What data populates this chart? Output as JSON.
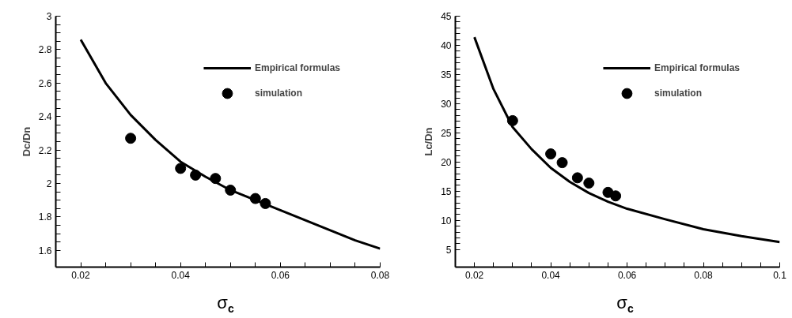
{
  "chart_data": [
    {
      "type": "line",
      "xlabel": "σ$_{c}$",
      "ylabel": "Dc/Dn",
      "xlim": [
        0.015,
        0.08
      ],
      "ylim": [
        1.5,
        3
      ],
      "xticks": [
        0.02,
        {
          "value": 0.025,
          "label": null
        },
        {
          "value": 0.03,
          "label": null
        },
        {
          "value": 0.035,
          "label": null
        },
        0.04,
        {
          "value": 0.045,
          "label": null
        },
        {
          "value": 0.05,
          "label": null
        },
        {
          "value": 0.055,
          "label": null
        },
        0.06,
        {
          "value": 0.065,
          "label": null
        },
        {
          "value": 0.07,
          "label": null
        },
        {
          "value": 0.075,
          "label": null
        },
        0.08
      ],
      "yticks": [
        1.6,
        {
          "value": 1.65,
          "label": null
        },
        {
          "value": 1.7,
          "label": null
        },
        {
          "value": 1.75,
          "label": null
        },
        1.8,
        {
          "value": 1.85,
          "label": null
        },
        {
          "value": 1.9,
          "label": null
        },
        {
          "value": 1.95,
          "label": null
        },
        2,
        {
          "value": 2.05,
          "label": null
        },
        {
          "value": 2.1,
          "label": null
        },
        {
          "value": 2.15,
          "label": null
        },
        2.2,
        {
          "value": 2.25,
          "label": null
        },
        {
          "value": 2.3,
          "label": null
        },
        {
          "value": 2.35,
          "label": null
        },
        2.4,
        {
          "value": 2.45,
          "label": null
        },
        {
          "value": 2.5,
          "label": null
        },
        {
          "value": 2.55,
          "label": null
        },
        2.6,
        {
          "value": 2.65,
          "label": null
        },
        {
          "value": 2.7,
          "label": null
        },
        {
          "value": 2.75,
          "label": null
        },
        2.8,
        {
          "value": 2.85,
          "label": null
        },
        {
          "value": 2.9,
          "label": null
        },
        {
          "value": 2.95,
          "label": null
        },
        3
      ],
      "grid": false,
      "legend": "top right",
      "series": [
        {
          "name": "Empirical formulas",
          "color": "#000000",
          "marker": "none",
          "line_style": "solid",
          "x": [
            0.02,
            0.025,
            0.03,
            0.035,
            0.04,
            0.045,
            0.05,
            0.055,
            0.06,
            0.065,
            0.07,
            0.075,
            0.08
          ],
          "values": [
            2.86,
            2.6,
            2.41,
            2.26,
            2.13,
            2.04,
            1.96,
            1.9,
            1.84,
            1.78,
            1.72,
            1.66,
            1.61
          ]
        },
        {
          "name": "simulation",
          "type": "scatter",
          "color": "#000000",
          "marker": "circle",
          "x": [
            0.03,
            0.04,
            0.043,
            0.047,
            0.05,
            0.055,
            0.057
          ],
          "values": [
            2.27,
            2.09,
            2.05,
            2.03,
            1.96,
            1.91,
            1.88
          ]
        }
      ]
    },
    {
      "type": "line",
      "xlabel": "σ$_{c}$",
      "ylabel": "Lc/Dn",
      "xlim": [
        0.015,
        0.1
      ],
      "ylim": [
        2,
        45
      ],
      "xticks": [
        0.02,
        {
          "value": 0.025,
          "label": null
        },
        {
          "value": 0.03,
          "label": null
        },
        {
          "value": 0.035,
          "label": null
        },
        0.04,
        {
          "value": 0.045,
          "label": null
        },
        {
          "value": 0.05,
          "label": null
        },
        {
          "value": 0.055,
          "label": null
        },
        0.06,
        {
          "value": 0.065,
          "label": null
        },
        {
          "value": 0.07,
          "label": null
        },
        {
          "value": 0.075,
          "label": null
        },
        0.08,
        {
          "value": 0.085,
          "label": null
        },
        {
          "value": 0.09,
          "label": null
        },
        {
          "value": 0.095,
          "label": null
        },
        0.1
      ],
      "yticks": [
        5,
        {
          "value": 6,
          "label": null
        },
        {
          "value": 7,
          "label": null
        },
        {
          "value": 8,
          "label": null
        },
        {
          "value": 9,
          "label": null
        },
        10,
        {
          "value": 11,
          "label": null
        },
        {
          "value": 12,
          "label": null
        },
        {
          "value": 13,
          "label": null
        },
        {
          "value": 14,
          "label": null
        },
        15,
        {
          "value": 16,
          "label": null
        },
        {
          "value": 17,
          "label": null
        },
        {
          "value": 18,
          "label": null
        },
        {
          "value": 19,
          "label": null
        },
        20,
        {
          "value": 21,
          "label": null
        },
        {
          "value": 22,
          "label": null
        },
        {
          "value": 23,
          "label": null
        },
        {
          "value": 24,
          "label": null
        },
        25,
        {
          "value": 26,
          "label": null
        },
        {
          "value": 27,
          "label": null
        },
        {
          "value": 28,
          "label": null
        },
        {
          "value": 29,
          "label": null
        },
        30,
        {
          "value": 31,
          "label": null
        },
        {
          "value": 32,
          "label": null
        },
        {
          "value": 33,
          "label": null
        },
        {
          "value": 34,
          "label": null
        },
        35,
        {
          "value": 36,
          "label": null
        },
        {
          "value": 37,
          "label": null
        },
        {
          "value": 38,
          "label": null
        },
        {
          "value": 39,
          "label": null
        },
        40,
        {
          "value": 41,
          "label": null
        },
        {
          "value": 42,
          "label": null
        },
        {
          "value": 43,
          "label": null
        },
        {
          "value": 44,
          "label": null
        },
        45
      ],
      "grid": false,
      "legend": "top right",
      "series": [
        {
          "name": "Empirical formulas",
          "color": "#000000",
          "marker": "none",
          "line_style": "solid",
          "x": [
            0.02,
            0.025,
            0.03,
            0.035,
            0.04,
            0.045,
            0.05,
            0.055,
            0.06,
            0.07,
            0.08,
            0.09,
            0.1
          ],
          "values": [
            41.4,
            32.5,
            26,
            22.2,
            19,
            16.6,
            14.7,
            13.2,
            12,
            10.2,
            8.5,
            7.3,
            6.3
          ]
        },
        {
          "name": "simulation",
          "type": "scatter",
          "color": "#000000",
          "marker": "circle",
          "x": [
            0.03,
            0.04,
            0.043,
            0.047,
            0.05,
            0.055,
            0.057
          ],
          "values": [
            27.1,
            21.4,
            19.9,
            17.3,
            16.4,
            14.8,
            14.2
          ]
        }
      ]
    }
  ]
}
